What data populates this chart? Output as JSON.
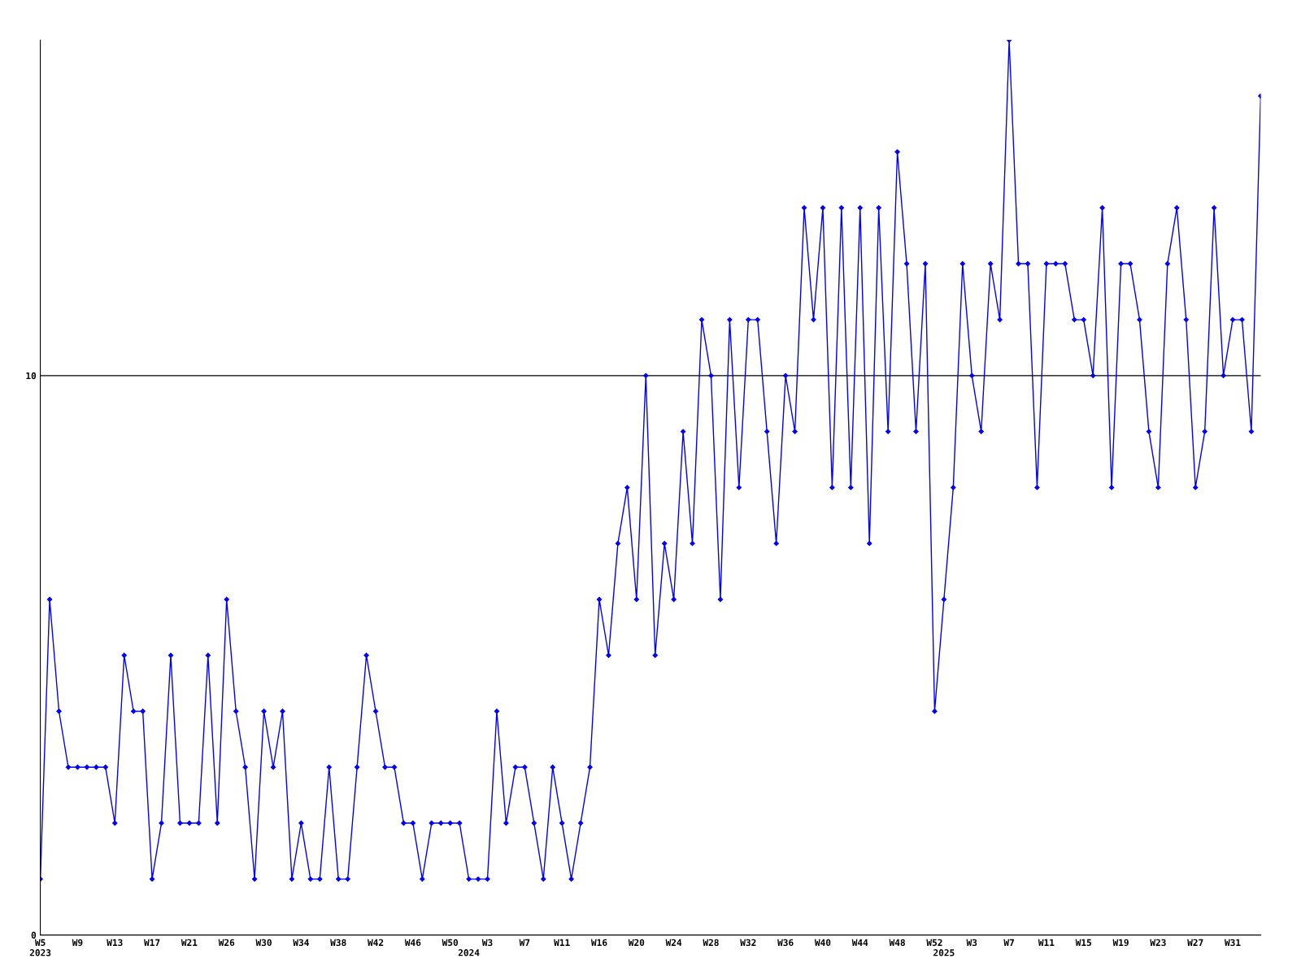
{
  "chart_data": {
    "type": "line",
    "categories": [
      "W5\n2023",
      null,
      null,
      null,
      "W9",
      null,
      null,
      null,
      "W13",
      null,
      null,
      null,
      "W17",
      null,
      null,
      null,
      "W21",
      null,
      null,
      null,
      "W26",
      null,
      null,
      null,
      "W30",
      null,
      null,
      null,
      "W34",
      null,
      null,
      null,
      "W38",
      null,
      null,
      null,
      "W42",
      null,
      null,
      null,
      "W46",
      null,
      null,
      null,
      "W50",
      null,
      "\n2024",
      null,
      "W3",
      null,
      null,
      null,
      "W7",
      null,
      null,
      null,
      "W11",
      null,
      null,
      null,
      "W16",
      null,
      null,
      null,
      "W20",
      null,
      null,
      null,
      "W24",
      null,
      null,
      null,
      "W28",
      null,
      null,
      null,
      "W32",
      null,
      null,
      null,
      "W36",
      null,
      null,
      null,
      "W40",
      null,
      null,
      null,
      "W44",
      null,
      null,
      null,
      "W48",
      null,
      null,
      null,
      "W52",
      "\n2025",
      null,
      null,
      "W3",
      null,
      null,
      null,
      "W7",
      null,
      null,
      null,
      "W11",
      null,
      null,
      null,
      "W15",
      null,
      null,
      null,
      "W19",
      null,
      null,
      null,
      "W23",
      null,
      null,
      null,
      "W27",
      null,
      null,
      null,
      "W31",
      null,
      null,
      null
    ],
    "series": [
      {
        "color": "#0000ff",
        "values": [
          1,
          6,
          4,
          3,
          3,
          3,
          3,
          3,
          2,
          5,
          4,
          4,
          1,
          2,
          5,
          2,
          2,
          2,
          5,
          2,
          6,
          4,
          3,
          1,
          4,
          3,
          4,
          1,
          2,
          1,
          1,
          3,
          1,
          1,
          3,
          5,
          4,
          3,
          3,
          2,
          2,
          1,
          2,
          2,
          2,
          2,
          1,
          1,
          1,
          4,
          2,
          3,
          3,
          2,
          1,
          3,
          2,
          1,
          2,
          3,
          6,
          5,
          7,
          8,
          6,
          10,
          5,
          7,
          6,
          9,
          7,
          11,
          10,
          6,
          11,
          8,
          11,
          11,
          9,
          7,
          10,
          9,
          13,
          11,
          13,
          8,
          13,
          8,
          13,
          7,
          13,
          9,
          14,
          12,
          9,
          12,
          4,
          6,
          8,
          12,
          10,
          9,
          12,
          11,
          16,
          12,
          12,
          8,
          12,
          12,
          12,
          11,
          11,
          10,
          13,
          8,
          12,
          12,
          11,
          9,
          8,
          12,
          13,
          11,
          8,
          9,
          13,
          10,
          11,
          11,
          9,
          15
        ]
      }
    ],
    "ylim": [
      0,
      16
    ],
    "yticks": [
      0,
      10
    ],
    "grid": "y",
    "marker": "diamond",
    "line_style": "solid"
  }
}
